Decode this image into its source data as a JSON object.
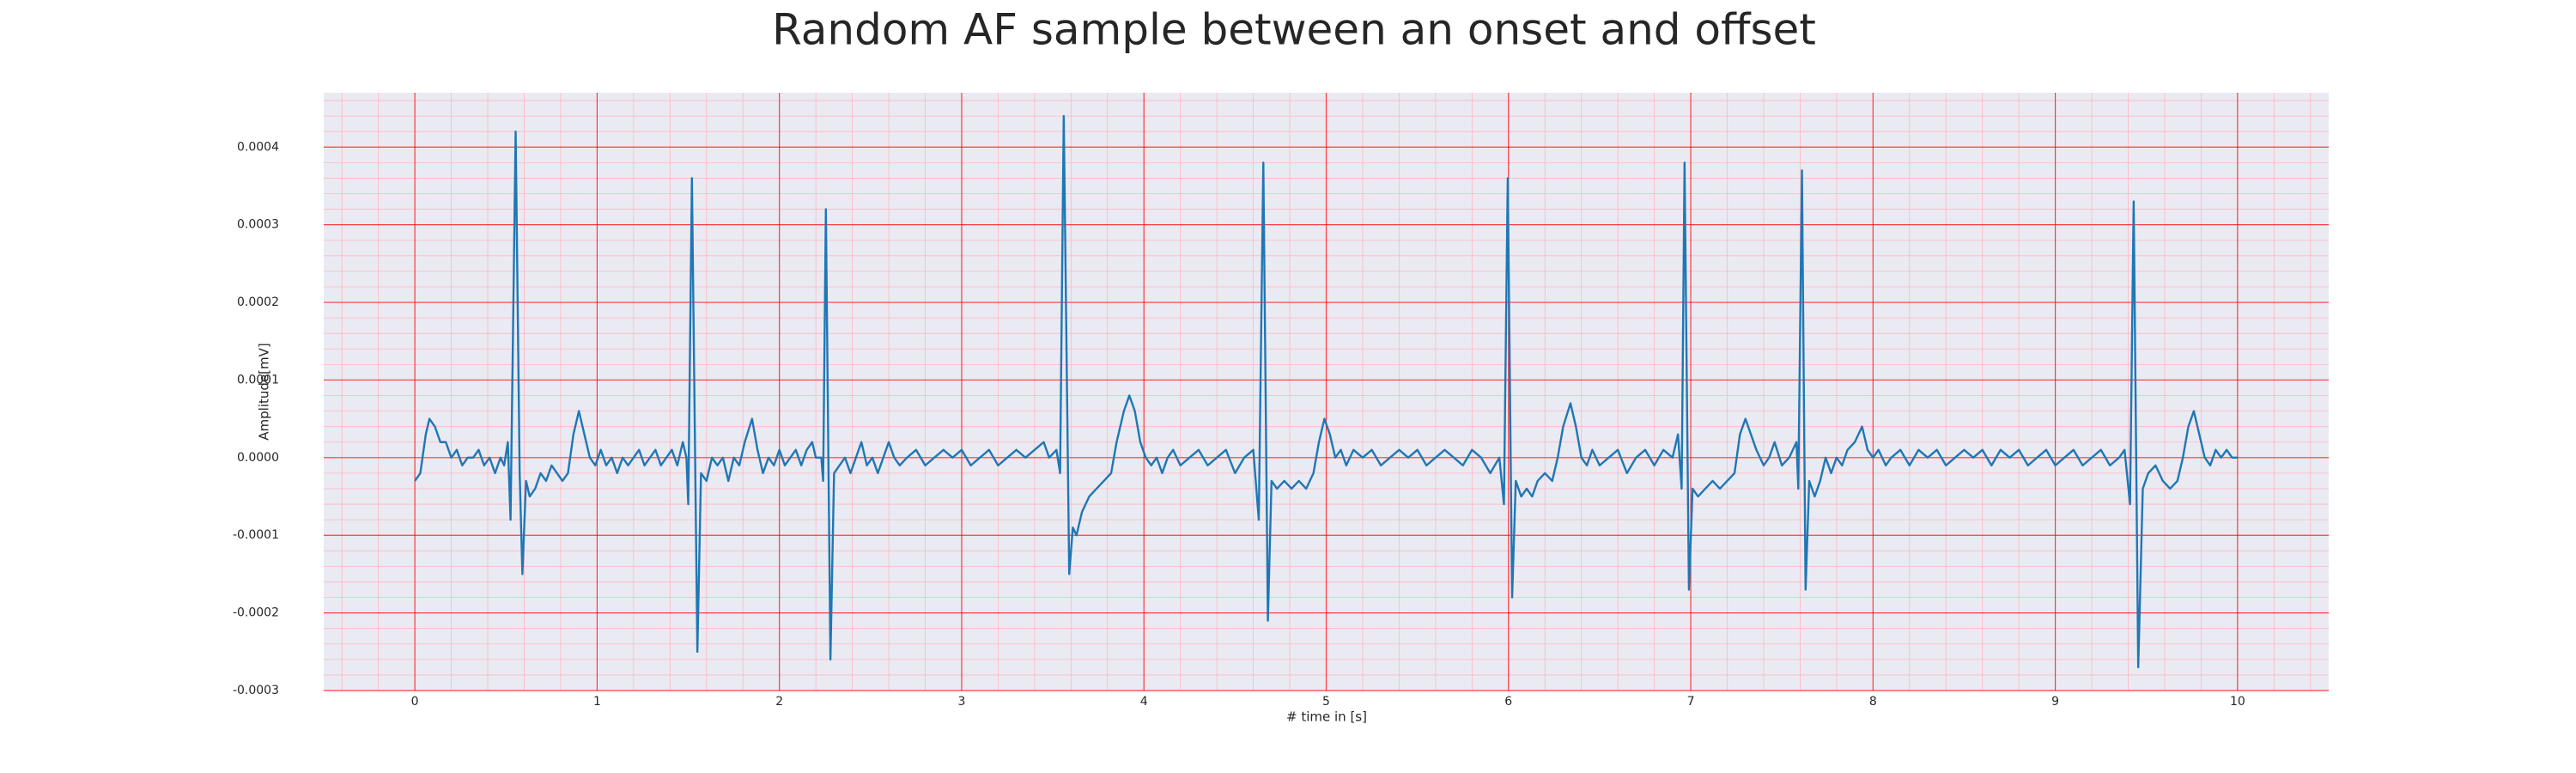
{
  "chart_data": {
    "type": "line",
    "title": "Random AF sample between an onset and offset",
    "xlabel": "# time in [s]",
    "ylabel": "Amplitude[mV]",
    "xlim": [
      -0.5,
      10.5
    ],
    "ylim": [
      -0.0003,
      0.00047
    ],
    "xticks": [
      0,
      1,
      2,
      3,
      4,
      5,
      6,
      7,
      8,
      9,
      10
    ],
    "yticks": [
      {
        "value": -0.0003,
        "label": "-0.0003"
      },
      {
        "value": -0.0002,
        "label": "-0.0002"
      },
      {
        "value": -0.0001,
        "label": "-0.0001"
      },
      {
        "value": 0,
        "label": "0.0000"
      },
      {
        "value": 0.0001,
        "label": "0.0001"
      },
      {
        "value": 0.0002,
        "label": "0.0002"
      },
      {
        "value": 0.0003,
        "label": "0.0003"
      },
      {
        "value": 0.0004,
        "label": "0.0004"
      }
    ],
    "grid": true,
    "minor_grid": true,
    "grid_color": "#ff0000",
    "minor_grid_color": "#ffb6c1",
    "background": "#eaeaf2",
    "x": [
      0,
      0.03,
      0.06,
      0.08,
      0.11,
      0.14,
      0.17,
      0.2,
      0.23,
      0.26,
      0.29,
      0.32,
      0.35,
      0.38,
      0.41,
      0.44,
      0.47,
      0.49,
      0.51,
      0.525,
      0.553,
      0.575,
      0.59,
      0.61,
      0.63,
      0.66,
      0.69,
      0.72,
      0.75,
      0.78,
      0.81,
      0.84,
      0.87,
      0.9,
      0.93,
      0.96,
      0.99,
      1.02,
      1.05,
      1.08,
      1.11,
      1.14,
      1.17,
      1.2,
      1.23,
      1.26,
      1.29,
      1.32,
      1.35,
      1.38,
      1.41,
      1.44,
      1.47,
      1.49,
      1.5,
      1.52,
      1.55,
      1.57,
      1.6,
      1.63,
      1.66,
      1.69,
      1.72,
      1.75,
      1.78,
      1.81,
      1.85,
      1.88,
      1.91,
      1.94,
      1.97,
      2.0,
      2.03,
      2.06,
      2.09,
      2.12,
      2.15,
      2.18,
      2.2,
      2.23,
      2.24,
      2.255,
      2.28,
      2.3,
      2.33,
      2.36,
      2.39,
      2.42,
      2.45,
      2.48,
      2.51,
      2.54,
      2.57,
      2.6,
      2.63,
      2.66,
      2.7,
      2.75,
      2.8,
      2.85,
      2.9,
      2.95,
      3.0,
      3.05,
      3.1,
      3.15,
      3.2,
      3.25,
      3.3,
      3.35,
      3.4,
      3.45,
      3.48,
      3.52,
      3.54,
      3.56,
      3.59,
      3.61,
      3.63,
      3.66,
      3.7,
      3.74,
      3.78,
      3.82,
      3.85,
      3.89,
      3.92,
      3.95,
      3.98,
      4.01,
      4.04,
      4.07,
      4.1,
      4.13,
      4.16,
      4.2,
      4.25,
      4.3,
      4.35,
      4.4,
      4.45,
      4.5,
      4.55,
      4.6,
      4.63,
      4.655,
      4.68,
      4.7,
      4.73,
      4.77,
      4.81,
      4.85,
      4.89,
      4.93,
      4.96,
      4.99,
      5.02,
      5.05,
      5.08,
      5.11,
      5.15,
      5.2,
      5.25,
      5.3,
      5.35,
      5.4,
      5.45,
      5.5,
      5.55,
      5.6,
      5.65,
      5.7,
      5.75,
      5.8,
      5.85,
      5.9,
      5.95,
      5.975,
      5.996,
      6.02,
      6.04,
      6.07,
      6.1,
      6.13,
      6.16,
      6.2,
      6.24,
      6.27,
      6.3,
      6.34,
      6.37,
      6.4,
      6.43,
      6.46,
      6.5,
      6.55,
      6.6,
      6.65,
      6.7,
      6.75,
      6.8,
      6.85,
      6.9,
      6.93,
      6.95,
      6.966,
      6.99,
      7.01,
      7.04,
      7.08,
      7.12,
      7.16,
      7.2,
      7.24,
      7.27,
      7.3,
      7.33,
      7.36,
      7.4,
      7.43,
      7.46,
      7.5,
      7.54,
      7.58,
      7.59,
      7.61,
      7.63,
      7.65,
      7.68,
      7.71,
      7.74,
      7.77,
      7.8,
      7.83,
      7.86,
      7.9,
      7.94,
      7.97,
      8.0,
      8.03,
      8.07,
      8.1,
      8.15,
      8.2,
      8.25,
      8.3,
      8.35,
      8.4,
      8.45,
      8.5,
      8.55,
      8.6,
      8.65,
      8.7,
      8.75,
      8.8,
      8.85,
      8.9,
      8.95,
      9.0,
      9.05,
      9.1,
      9.15,
      9.2,
      9.25,
      9.3,
      9.35,
      9.38,
      9.41,
      9.43,
      9.455,
      9.48,
      9.51,
      9.55,
      9.59,
      9.63,
      9.67,
      9.7,
      9.73,
      9.76,
      9.79,
      9.82,
      9.85,
      9.88,
      9.91,
      9.94,
      9.97,
      10
    ],
    "series": [
      {
        "color": "#1f77b4",
        "values": [
          -3e-05,
          -2e-05,
          3e-05,
          5e-05,
          4e-05,
          2e-05,
          2e-05,
          0,
          1e-05,
          -1e-05,
          0,
          0,
          1e-05,
          -1e-05,
          0,
          -2e-05,
          0,
          -1e-05,
          2e-05,
          -8e-05,
          0.00042,
          -2e-05,
          -0.00015,
          -3e-05,
          -5e-05,
          -4e-05,
          -2e-05,
          -3e-05,
          -1e-05,
          -2e-05,
          -3e-05,
          -2e-05,
          3e-05,
          6e-05,
          3e-05,
          0,
          -1e-05,
          1e-05,
          -1e-05,
          0,
          -2e-05,
          0,
          -1e-05,
          0,
          1e-05,
          -1e-05,
          0,
          1e-05,
          -1e-05,
          0,
          1e-05,
          -1e-05,
          2e-05,
          0,
          -6e-05,
          0.00036,
          -0.00025,
          -2e-05,
          -3e-05,
          0,
          -1e-05,
          0,
          -3e-05,
          0,
          -1e-05,
          2e-05,
          5e-05,
          1e-05,
          -2e-05,
          0,
          -1e-05,
          1e-05,
          -1e-05,
          0,
          1e-05,
          -1e-05,
          1e-05,
          2e-05,
          0,
          0,
          -3e-05,
          0.00032,
          -0.00026,
          -2e-05,
          -1e-05,
          0,
          -2e-05,
          0,
          2e-05,
          -1e-05,
          0,
          -2e-05,
          0,
          2e-05,
          0,
          -1e-05,
          0,
          1e-05,
          -1e-05,
          0,
          1e-05,
          0,
          1e-05,
          -1e-05,
          0,
          1e-05,
          -1e-05,
          0,
          1e-05,
          0,
          1e-05,
          2e-05,
          0,
          1e-05,
          -2e-05,
          0.00044,
          -0.00015,
          -9e-05,
          -0.0001,
          -7e-05,
          -5e-05,
          -4e-05,
          -3e-05,
          -2e-05,
          2e-05,
          6e-05,
          8e-05,
          6e-05,
          2e-05,
          0,
          -1e-05,
          0,
          -2e-05,
          0,
          1e-05,
          -1e-05,
          0,
          1e-05,
          -1e-05,
          0,
          1e-05,
          -2e-05,
          0,
          1e-05,
          -8e-05,
          0.00038,
          -0.00021,
          -3e-05,
          -4e-05,
          -3e-05,
          -4e-05,
          -3e-05,
          -4e-05,
          -2e-05,
          2e-05,
          5e-05,
          3e-05,
          0,
          1e-05,
          -1e-05,
          1e-05,
          0,
          1e-05,
          -1e-05,
          0,
          1e-05,
          0,
          1e-05,
          -1e-05,
          0,
          1e-05,
          0,
          -1e-05,
          1e-05,
          0,
          -2e-05,
          0,
          -6e-05,
          0.00036,
          -0.00018,
          -3e-05,
          -5e-05,
          -4e-05,
          -5e-05,
          -3e-05,
          -2e-05,
          -3e-05,
          0,
          4e-05,
          7e-05,
          4e-05,
          0,
          -1e-05,
          1e-05,
          -1e-05,
          0,
          1e-05,
          -2e-05,
          0,
          1e-05,
          -1e-05,
          1e-05,
          0,
          3e-05,
          -4e-05,
          0.00038,
          -0.00017,
          -4e-05,
          -5e-05,
          -4e-05,
          -3e-05,
          -4e-05,
          -3e-05,
          -2e-05,
          3e-05,
          5e-05,
          3e-05,
          1e-05,
          -1e-05,
          0,
          2e-05,
          -1e-05,
          0,
          2e-05,
          -4e-05,
          0.00037,
          -0.00017,
          -3e-05,
          -5e-05,
          -3e-05,
          0,
          -2e-05,
          0,
          -1e-05,
          1e-05,
          2e-05,
          4e-05,
          1e-05,
          0,
          1e-05,
          -1e-05,
          0,
          1e-05,
          -1e-05,
          1e-05,
          0,
          1e-05,
          -1e-05,
          0,
          1e-05,
          0,
          1e-05,
          -1e-05,
          1e-05,
          0,
          1e-05,
          -1e-05,
          0,
          1e-05,
          -1e-05,
          0,
          1e-05,
          -1e-05,
          0,
          1e-05,
          -1e-05,
          0,
          1e-05,
          -6e-05,
          0.00033,
          -0.00027,
          -4e-05,
          -2e-05,
          -1e-05,
          -3e-05,
          -4e-05,
          -3e-05,
          0,
          4e-05,
          6e-05,
          3e-05,
          0,
          -1e-05,
          1e-05,
          0,
          1e-05,
          0,
          0
        ]
      }
    ]
  }
}
